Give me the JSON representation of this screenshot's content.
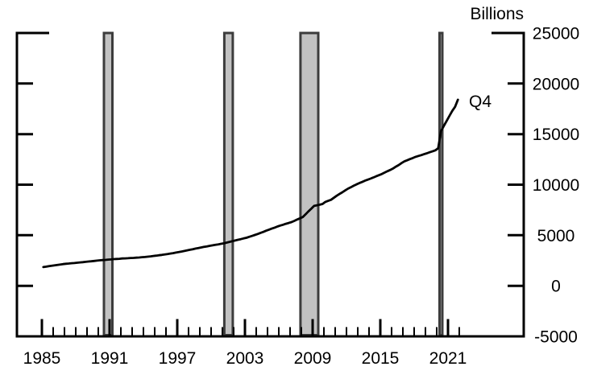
{
  "chart_data": {
    "type": "line",
    "title": "",
    "unit_label": "Billions",
    "end_label": "Q4",
    "legend": "none",
    "grid": "off",
    "x_axis": {
      "major_tick_years": [
        1985,
        1991,
        1997,
        2003,
        2009,
        2015,
        2021
      ],
      "major_tick_labels": [
        "1985",
        "1991",
        "1997",
        "2003",
        "2009",
        "2015",
        "2021"
      ],
      "minor_tick_start": 1985,
      "minor_tick_end": 2022,
      "minor_tick_interval": 1
    },
    "y_axis": {
      "min": -5000,
      "max": 25000,
      "tick_interval": 5000,
      "tick_values": [
        25000,
        20000,
        15000,
        10000,
        5000,
        0,
        -5000
      ],
      "tick_labels": [
        "25000",
        "20000",
        "15000",
        "10000",
        "5000",
        "0",
        "-5000"
      ],
      "side": "right"
    },
    "series": [
      {
        "name": "quarterly-series",
        "frequency": "quarterly",
        "x_start": 1985.125,
        "x_step": 0.25,
        "values": [
          1850,
          1890,
          1945,
          1990,
          2030,
          2070,
          2105,
          2145,
          2180,
          2200,
          2230,
          2250,
          2280,
          2315,
          2340,
          2365,
          2400,
          2425,
          2460,
          2485,
          2520,
          2545,
          2560,
          2590,
          2610,
          2640,
          2655,
          2675,
          2700,
          2710,
          2730,
          2750,
          2760,
          2780,
          2800,
          2830,
          2850,
          2880,
          2910,
          2950,
          2980,
          3025,
          3055,
          3100,
          3140,
          3190,
          3230,
          3285,
          3330,
          3390,
          3440,
          3505,
          3560,
          3615,
          3680,
          3730,
          3790,
          3845,
          3890,
          3950,
          4000,
          4055,
          4095,
          4150,
          4200,
          4270,
          4345,
          4405,
          4480,
          4550,
          4610,
          4685,
          4750,
          4845,
          4930,
          5030,
          5120,
          5230,
          5330,
          5445,
          5550,
          5655,
          5750,
          5860,
          5960,
          6040,
          6135,
          6210,
          6300,
          6420,
          6555,
          6670,
          6800,
          7070,
          7355,
          7620,
          7900,
          7960,
          8020,
          8090,
          8300,
          8400,
          8500,
          8700,
          8900,
          9080,
          9245,
          9430,
          9600,
          9740,
          9890,
          10020,
          10150,
          10265,
          10390,
          10490,
          10600,
          10710,
          10830,
          10940,
          11050,
          11190,
          11330,
          11460,
          11600,
          11780,
          11945,
          12130,
          12300,
          12410,
          12530,
          12635,
          12750,
          12840,
          12920,
          13015,
          13100,
          13205,
          13295,
          13400,
          13600,
          15300,
          15800,
          16300,
          16800,
          17300,
          17700,
          18400
        ]
      }
    ],
    "recession_bands": [
      {
        "start": 1990.5,
        "end": 1991.25
      },
      {
        "start": 2001.17,
        "end": 2001.92
      },
      {
        "start": 2007.92,
        "end": 2009.5
      },
      {
        "start": 2020.25,
        "end": 2020.5
      }
    ],
    "colors": {
      "line": "#000000",
      "axis": "#000000",
      "recession_fill": "#c2c2c2",
      "recession_border": "#3c3c3c",
      "background": "#ffffff"
    }
  }
}
